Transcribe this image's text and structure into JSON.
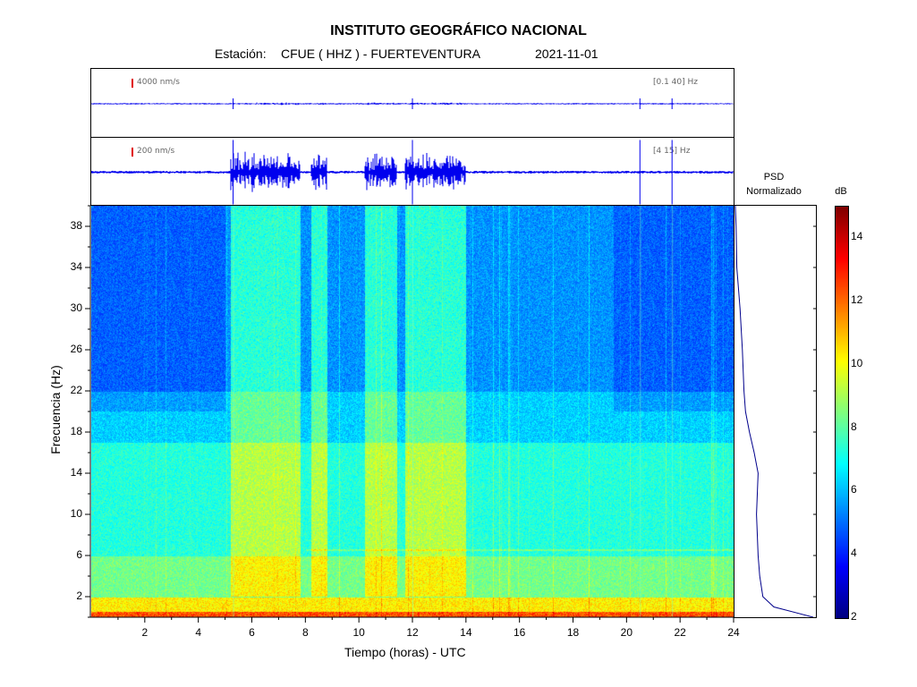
{
  "header": {
    "title": "INSTITUTO GEOGRÁFICO NACIONAL",
    "station_label": "Estación:",
    "station": "CFUE ( HHZ ) - FUERTEVENTURA",
    "date": "2021-11-01"
  },
  "traces": [
    {
      "amplitude_label": "4000 nm/s",
      "band_label": "[0.1  40]  Hz"
    },
    {
      "amplitude_label": "200 nm/s",
      "band_label": "[4  15]  Hz"
    }
  ],
  "psd": {
    "label_line1": "PSD",
    "label_line2": "Normalizado"
  },
  "colorbar": {
    "unit": "dB",
    "range": [
      2,
      15
    ],
    "ticks": [
      "2",
      "4",
      "6",
      "8",
      "10",
      "12",
      "14"
    ],
    "colors": [
      "#00007f",
      "#0000ff",
      "#007fff",
      "#00ffff",
      "#7fff7f",
      "#ffff00",
      "#ff7f00",
      "#ff0000",
      "#7f0000"
    ]
  },
  "chart_data": {
    "type": "heatmap",
    "xlabel": "Tiempo (horas) - UTC",
    "ylabel": "Frecuencia  (Hz)",
    "xlim": [
      0,
      24
    ],
    "ylim": [
      0,
      40
    ],
    "xticks": [
      "2",
      "4",
      "6",
      "8",
      "10",
      "12",
      "14",
      "16",
      "18",
      "20",
      "22",
      "24"
    ],
    "yticks": [
      "2",
      "6",
      "10",
      "14",
      "18",
      "22",
      "26",
      "30",
      "34",
      "38"
    ],
    "colorbar_unit": "dB",
    "noisy_periods_hours": [
      [
        5.2,
        7.8
      ],
      [
        8.2,
        8.8
      ],
      [
        10.2,
        11.4
      ],
      [
        11.7,
        14.0
      ]
    ],
    "spike_times_hours": [
      5.3,
      12.0,
      20.5,
      21.7
    ],
    "psd_profile": {
      "freq_hz": [
        0,
        1,
        2,
        4,
        6,
        8,
        10,
        12,
        14,
        16,
        18,
        20,
        22,
        26,
        30,
        34,
        38,
        40
      ],
      "level": [
        1.0,
        0.5,
        0.36,
        0.32,
        0.3,
        0.29,
        0.28,
        0.29,
        0.3,
        0.25,
        0.19,
        0.14,
        0.12,
        0.1,
        0.07,
        0.03,
        0.02,
        0.01
      ]
    }
  }
}
